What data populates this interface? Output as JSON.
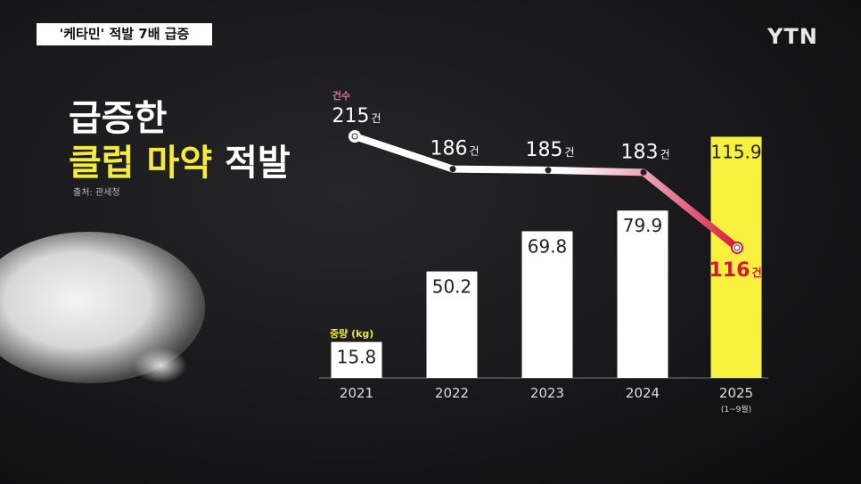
{
  "caption": "'케타민' 적발 7배 급증",
  "logo": "YTN",
  "title": {
    "line1": "급증한",
    "highlight": "클럽 마약",
    "rest": "적발"
  },
  "source": "출처: 관세청",
  "colors": {
    "bar": "#ffffff",
    "bar_highlight": "#f7f03c",
    "line_start": "#ffffff",
    "line_end": "#d8163c",
    "highlight_text": "#f5ec3a"
  },
  "chart_data": {
    "type": "bar+line",
    "categories": [
      "2021",
      "2022",
      "2023",
      "2024",
      "2025"
    ],
    "category_notes": [
      "",
      "",
      "",
      "",
      "(1~9월)"
    ],
    "bar_series": {
      "label": "중량 (kg)",
      "values": [
        15.8,
        50.2,
        69.8,
        79.9,
        115.9
      ],
      "value_labels": [
        "15.8",
        "50.2",
        "69.8",
        "79.9",
        "115.9"
      ]
    },
    "line_series": {
      "label": "건수",
      "unit": "건",
      "values": [
        215,
        186,
        185,
        183,
        116
      ]
    }
  }
}
